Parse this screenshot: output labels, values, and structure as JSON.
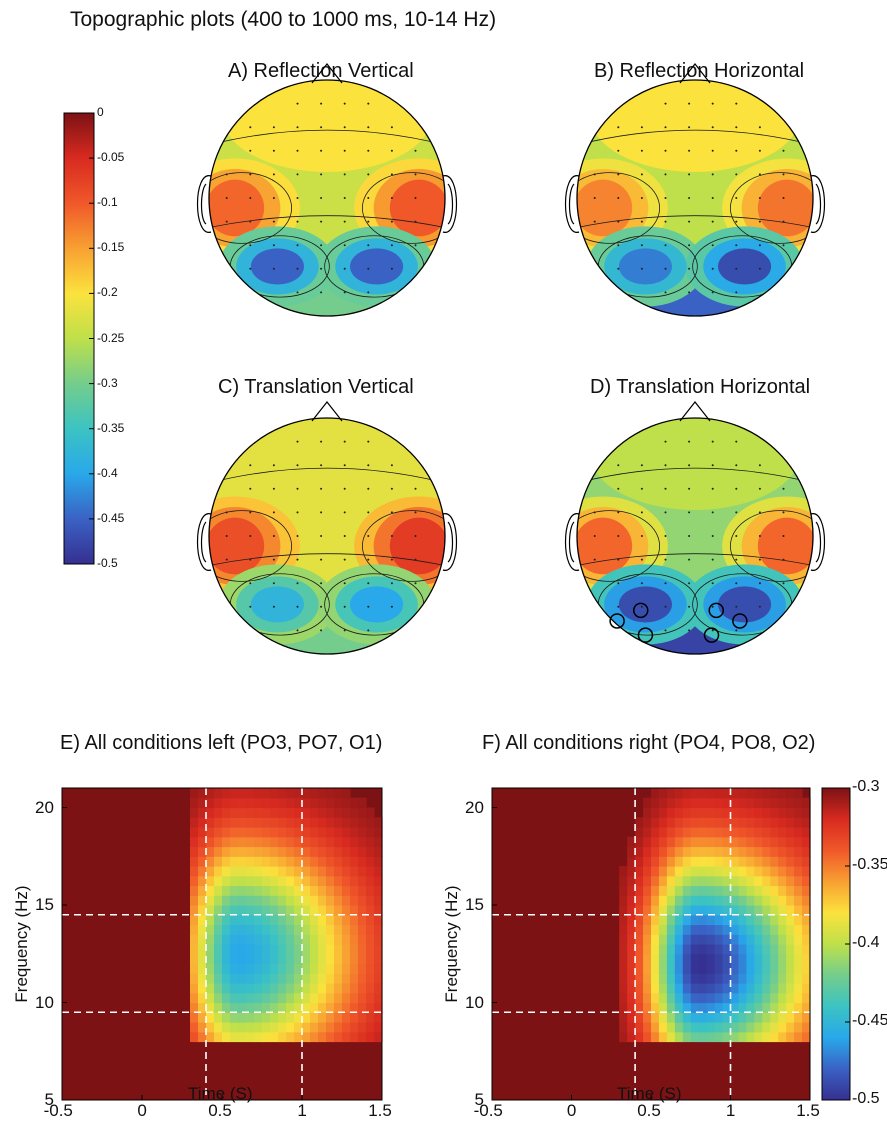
{
  "title": "Topographic plots (400 to 1000 ms, 10-14 Hz)",
  "colorscale": [
    "#7d1215",
    "#d82a20",
    "#f0582a",
    "#f8a032",
    "#fbe23d",
    "#bfe04a",
    "#74cd8c",
    "#3cc3c2",
    "#29a8ea",
    "#3a62c4",
    "#352f90"
  ],
  "chart_data": [
    {
      "type": "heatmap",
      "subtype": "scalp-topography",
      "panels": [
        {
          "label": "A) Reflection Vertical",
          "left_temporal": -0.11,
          "right_temporal": -0.1,
          "frontal": -0.2,
          "central": -0.24,
          "posterior_left": -0.45,
          "posterior_right": -0.45,
          "occipital": -0.3
        },
        {
          "label": "B) Reflection Horizontal",
          "left_temporal": -0.13,
          "right_temporal": -0.12,
          "frontal": -0.2,
          "central": -0.25,
          "posterior_left": -0.43,
          "posterior_right": -0.47,
          "occipital": -0.45
        },
        {
          "label": "C) Translation Vertical",
          "left_temporal": -0.09,
          "right_temporal": -0.07,
          "frontal": -0.22,
          "central": -0.22,
          "posterior_left": -0.38,
          "posterior_right": -0.4,
          "occipital": -0.3
        },
        {
          "label": "D) Translation Horizontal",
          "left_temporal": -0.11,
          "right_temporal": -0.11,
          "frontal": -0.25,
          "central": -0.28,
          "posterior_left": -0.47,
          "posterior_right": -0.47,
          "occipital": -0.48
        }
      ],
      "colorbar": {
        "min": -0.5,
        "max": 0,
        "ticks": [
          "0",
          "-0.05",
          "-0.1",
          "-0.15",
          "-0.2",
          "-0.25",
          "-0.3",
          "-0.35",
          "-0.4",
          "-0.45",
          "-0.5"
        ]
      }
    },
    {
      "type": "heatmap",
      "subtype": "time-frequency",
      "panels": [
        {
          "label": "E) All conditions left (PO3, PO7, O1)",
          "center_time": 0.6,
          "center_freq": 12.5,
          "min_value": -0.46,
          "onset": 0.3,
          "offset": 1.5,
          "fmin": 8,
          "fmax": 21
        },
        {
          "label": "F) All conditions right (PO4, PO8, O2)",
          "center_time": 0.8,
          "center_freq": 12,
          "min_value": -0.5,
          "onset": 0.3,
          "offset": 1.5,
          "fmin": 8,
          "fmax": 21
        }
      ],
      "xlabel": "Time (S)",
      "ylabel": "Frequency (Hz)",
      "xlim": [
        -0.5,
        1.5
      ],
      "ylim": [
        5,
        21
      ],
      "xticks": [
        "-0.5",
        "0",
        "0.5",
        "1",
        "1.5"
      ],
      "yticks": [
        "5",
        "10",
        "15",
        "20"
      ],
      "dashed_x": [
        0.4,
        1.0
      ],
      "dashed_y": [
        9.5,
        14.5
      ],
      "colorbar": {
        "min": -0.5,
        "max": -0.3,
        "ticks": [
          "-0.3",
          "-0.35",
          "-0.4",
          "-0.45",
          "-0.5"
        ]
      }
    }
  ]
}
